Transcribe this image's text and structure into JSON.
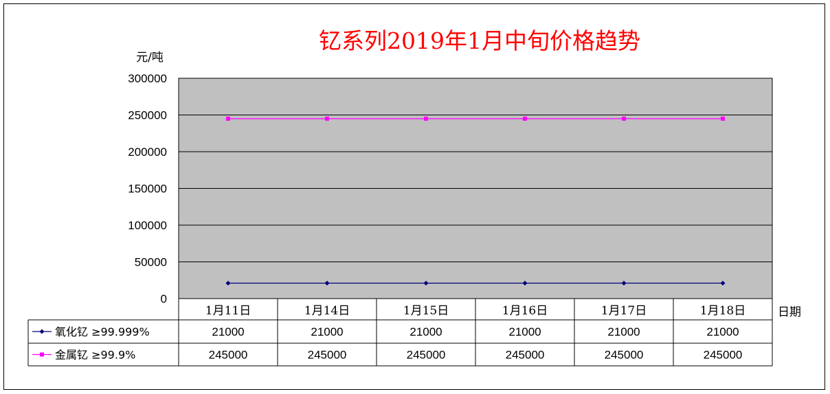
{
  "chart_data": {
    "type": "line",
    "title": "钇系列2019年1月中旬价格趋势",
    "ylabel": "元/吨",
    "xlabel": "日期",
    "ylim": [
      0,
      300000
    ],
    "yticks": [
      "300000",
      "250000",
      "200000",
      "150000",
      "100000",
      "50000",
      "0"
    ],
    "ytick_values": [
      300000,
      250000,
      200000,
      150000,
      100000,
      50000,
      0
    ],
    "categories": [
      "1月11日",
      "1月14日",
      "1月15日",
      "1月16日",
      "1月17日",
      "1月18日"
    ],
    "series": [
      {
        "name": "氧化钇 ≥99.999%",
        "values": [
          21000,
          21000,
          21000,
          21000,
          21000,
          21000
        ],
        "color": "#00007f",
        "marker": "diamond"
      },
      {
        "name": "金属钇 ≥99.9%",
        "values": [
          245000,
          245000,
          245000,
          245000,
          245000,
          245000
        ],
        "color": "#ff00ff",
        "marker": "square"
      }
    ],
    "data_table": [
      [
        "21000",
        "21000",
        "21000",
        "21000",
        "21000",
        "21000"
      ],
      [
        "245000",
        "245000",
        "245000",
        "245000",
        "245000",
        "245000"
      ]
    ],
    "grid": true,
    "plot_background": "#c0c0c0",
    "legend": "data-table"
  }
}
